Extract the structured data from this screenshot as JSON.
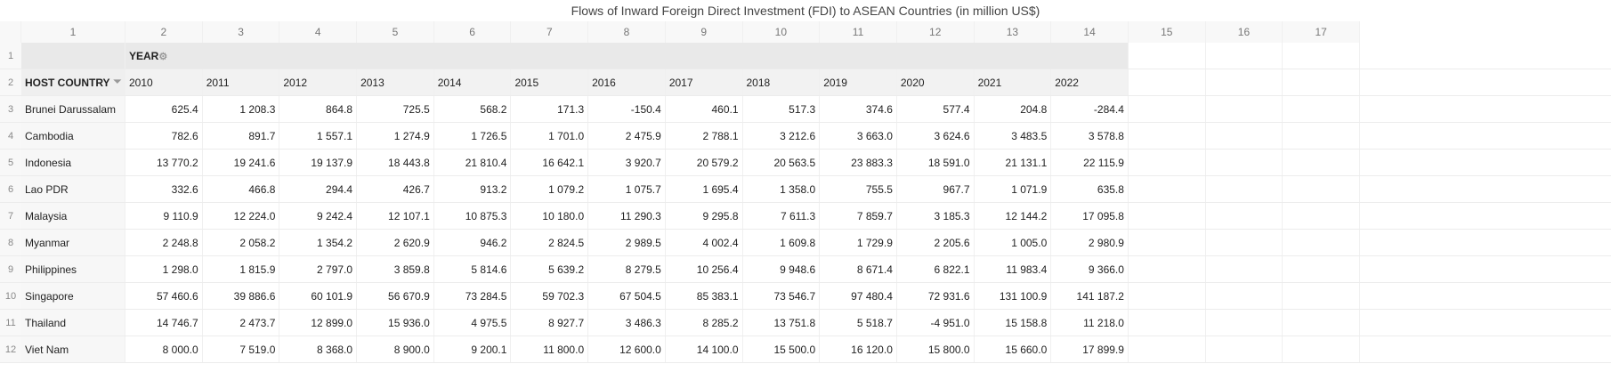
{
  "title": "Flows of Inward Foreign Direct Investment (FDI) to ASEAN Countries (in million US$)",
  "column_numbers": [
    "1",
    "2",
    "3",
    "4",
    "5",
    "6",
    "7",
    "8",
    "9",
    "10",
    "11",
    "12",
    "13",
    "14",
    "15",
    "16",
    "17"
  ],
  "row_numbers": [
    "1",
    "2",
    "3",
    "4",
    "5",
    "6",
    "7",
    "8",
    "9",
    "10",
    "11",
    "12"
  ],
  "header": {
    "year_label": "YEAR",
    "host_country_label": "HOST COUNTRY",
    "years": [
      "2010",
      "2011",
      "2012",
      "2013",
      "2014",
      "2015",
      "2016",
      "2017",
      "2018",
      "2019",
      "2020",
      "2021",
      "2022"
    ]
  },
  "rows": [
    {
      "country": "Brunei Darussalam",
      "values": [
        "625.4",
        "1 208.3",
        "864.8",
        "725.5",
        "568.2",
        "171.3",
        "-150.4",
        "460.1",
        "517.3",
        "374.6",
        "577.4",
        "204.8",
        "-284.4"
      ]
    },
    {
      "country": "Cambodia",
      "values": [
        "782.6",
        "891.7",
        "1 557.1",
        "1 274.9",
        "1 726.5",
        "1 701.0",
        "2 475.9",
        "2 788.1",
        "3 212.6",
        "3 663.0",
        "3 624.6",
        "3 483.5",
        "3 578.8"
      ]
    },
    {
      "country": "Indonesia",
      "values": [
        "13 770.2",
        "19 241.6",
        "19 137.9",
        "18 443.8",
        "21 810.4",
        "16 642.1",
        "3 920.7",
        "20 579.2",
        "20 563.5",
        "23 883.3",
        "18 591.0",
        "21 131.1",
        "22 115.9"
      ]
    },
    {
      "country": "Lao PDR",
      "values": [
        "332.6",
        "466.8",
        "294.4",
        "426.7",
        "913.2",
        "1 079.2",
        "1 075.7",
        "1 695.4",
        "1 358.0",
        "755.5",
        "967.7",
        "1 071.9",
        "635.8"
      ]
    },
    {
      "country": "Malaysia",
      "values": [
        "9 110.9",
        "12 224.0",
        "9 242.4",
        "12 107.1",
        "10 875.3",
        "10 180.0",
        "11 290.3",
        "9 295.8",
        "7 611.3",
        "7 859.7",
        "3 185.3",
        "12 144.2",
        "17 095.8"
      ]
    },
    {
      "country": "Myanmar",
      "values": [
        "2 248.8",
        "2 058.2",
        "1 354.2",
        "2 620.9",
        "946.2",
        "2 824.5",
        "2 989.5",
        "4 002.4",
        "1 609.8",
        "1 729.9",
        "2 205.6",
        "1 005.0",
        "2 980.9"
      ]
    },
    {
      "country": "Philippines",
      "values": [
        "1 298.0",
        "1 815.9",
        "2 797.0",
        "3 859.8",
        "5 814.6",
        "5 639.2",
        "8 279.5",
        "10 256.4",
        "9 948.6",
        "8 671.4",
        "6 822.1",
        "11 983.4",
        "9 366.0"
      ]
    },
    {
      "country": "Singapore",
      "values": [
        "57 460.6",
        "39 886.6",
        "60 101.9",
        "56 670.9",
        "73 284.5",
        "59 702.3",
        "67 504.5",
        "85 383.1",
        "73 546.7",
        "97 480.4",
        "72 931.6",
        "131 100.9",
        "141 187.2"
      ]
    },
    {
      "country": "Thailand",
      "values": [
        "14 746.7",
        "2 473.7",
        "12 899.0",
        "15 936.0",
        "4 975.5",
        "8 927.7",
        "3 486.3",
        "8 285.2",
        "13 751.8",
        "5 518.7",
        "-4 951.0",
        "15 158.8",
        "11 218.0"
      ]
    },
    {
      "country": "Viet Nam",
      "values": [
        "8 000.0",
        "7 519.0",
        "8 368.0",
        "8 900.0",
        "9 200.1",
        "11 800.0",
        "12 600.0",
        "14 100.0",
        "15 500.0",
        "16 120.0",
        "15 800.0",
        "15 660.0",
        "17 899.9"
      ]
    }
  ]
}
